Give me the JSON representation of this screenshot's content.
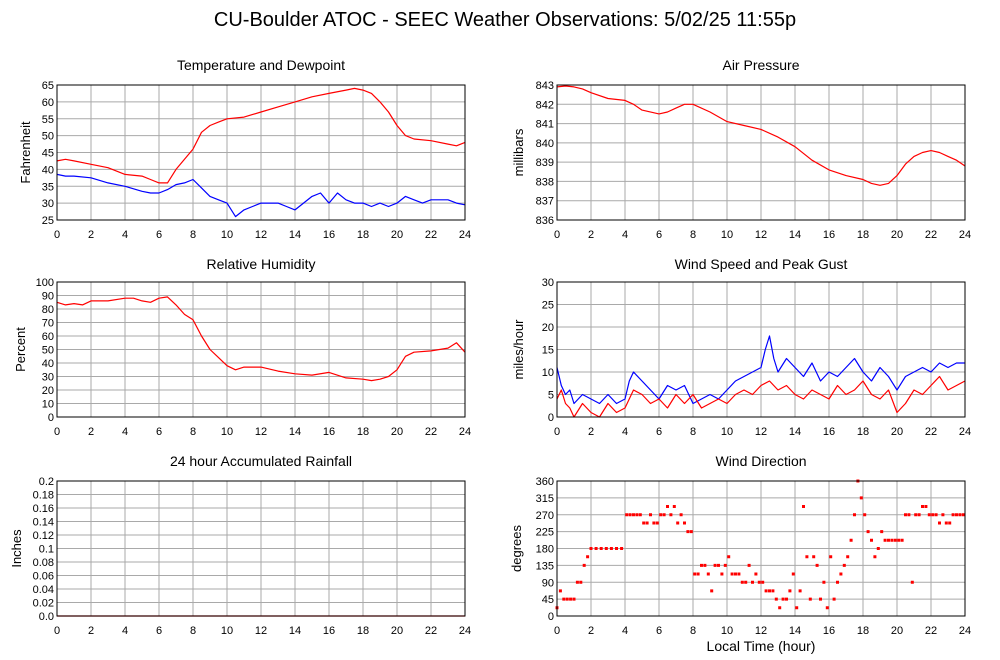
{
  "title": "CU-Boulder ATOC - SEEC Weather Observations: 5/02/25 11:55p",
  "x_axis_label": "Local Time (hour)",
  "x_ticks": [
    0,
    2,
    4,
    6,
    8,
    10,
    12,
    14,
    16,
    18,
    20,
    22,
    24
  ],
  "colors": {
    "red": "#ff0000",
    "blue": "#0000ff",
    "grid": "#a9a9a9",
    "frame": "#000000"
  },
  "chart_data": [
    {
      "id": "temp",
      "type": "line",
      "title": "Temperature and Dewpoint",
      "ylabel": "Fahrenheit",
      "xlim": [
        0,
        24
      ],
      "ylim": [
        25,
        65
      ],
      "yticks": [
        25,
        30,
        35,
        40,
        45,
        50,
        55,
        60,
        65
      ],
      "series": [
        {
          "color": "#ff0000",
          "x": [
            0,
            0.5,
            1,
            2,
            3,
            4,
            5,
            5.5,
            6,
            6.5,
            7,
            7.5,
            8,
            8.5,
            9,
            9.5,
            10,
            11,
            12,
            13,
            14,
            15,
            16,
            17,
            17.5,
            18,
            18.5,
            19,
            19.5,
            20,
            20.5,
            21,
            22,
            23,
            23.5,
            24
          ],
          "y": [
            42.5,
            43,
            42.5,
            41.5,
            40.5,
            38.5,
            38,
            37,
            36,
            36,
            40,
            43,
            46,
            51,
            53,
            54,
            55,
            55.5,
            57,
            58.5,
            60,
            61.5,
            62.5,
            63.5,
            64,
            63.5,
            62.5,
            60,
            57,
            53,
            50,
            49,
            48.5,
            47.5,
            47,
            48
          ]
        },
        {
          "color": "#0000ff",
          "x": [
            0,
            0.5,
            1,
            2,
            3,
            4,
            5,
            5.5,
            6,
            6.5,
            7,
            7.5,
            8,
            8.5,
            9,
            9.5,
            10,
            10.5,
            11,
            11.5,
            12,
            13,
            13.5,
            14,
            14.5,
            15,
            15.5,
            16,
            16.5,
            17,
            17.5,
            18,
            18.5,
            19,
            19.5,
            20,
            20.5,
            21,
            21.5,
            22,
            22.5,
            23,
            23.5,
            24
          ],
          "y": [
            38.5,
            38,
            38,
            37.5,
            36,
            35,
            33.5,
            33,
            33,
            34,
            35.5,
            36,
            37,
            34.5,
            32,
            31,
            30,
            26,
            28,
            29,
            30,
            30,
            29,
            28,
            30,
            32,
            33,
            30,
            33,
            31,
            30,
            30,
            29,
            30,
            29,
            30,
            32,
            31,
            30,
            31,
            31,
            31,
            30,
            29.5
          ]
        }
      ]
    },
    {
      "id": "pressure",
      "type": "line",
      "title": "Air Pressure",
      "ylabel": "millibars",
      "xlim": [
        0,
        24
      ],
      "ylim": [
        836,
        843
      ],
      "yticks": [
        836,
        837,
        838,
        839,
        840,
        841,
        842,
        843
      ],
      "series": [
        {
          "color": "#ff0000",
          "x": [
            0,
            0.5,
            1,
            1.5,
            2,
            3,
            4,
            4.5,
            5,
            6,
            6.5,
            7,
            7.5,
            8,
            9,
            10,
            11,
            12,
            13,
            14,
            15,
            16,
            17,
            18,
            18.5,
            19,
            19.5,
            20,
            20.5,
            21,
            21.5,
            22,
            22.5,
            23,
            23.5,
            24
          ],
          "y": [
            842.9,
            842.95,
            842.9,
            842.8,
            842.6,
            842.3,
            842.2,
            842,
            841.7,
            841.5,
            841.6,
            841.8,
            842,
            842,
            841.6,
            841.1,
            840.9,
            840.7,
            840.3,
            839.8,
            839.1,
            838.6,
            838.3,
            838.1,
            837.9,
            837.8,
            837.9,
            838.3,
            838.9,
            839.3,
            839.5,
            839.6,
            839.5,
            839.3,
            839.1,
            838.8
          ]
        }
      ]
    },
    {
      "id": "rh",
      "type": "line",
      "title": "Relative Humidity",
      "ylabel": "Percent",
      "xlim": [
        0,
        24
      ],
      "ylim": [
        0,
        100
      ],
      "yticks": [
        0,
        10,
        20,
        30,
        40,
        50,
        60,
        70,
        80,
        90,
        100
      ],
      "series": [
        {
          "color": "#ff0000",
          "x": [
            0,
            0.5,
            1,
            1.5,
            2,
            3,
            4,
            4.5,
            5,
            5.5,
            6,
            6.5,
            7,
            7.5,
            8,
            8.5,
            9,
            9.5,
            10,
            10.5,
            11,
            12,
            13,
            14,
            15,
            16,
            17,
            18,
            18.5,
            19,
            19.5,
            20,
            20.5,
            21,
            22,
            22.5,
            23,
            23.5,
            24
          ],
          "y": [
            85,
            83,
            84,
            83,
            86,
            86,
            88,
            88,
            86,
            85,
            88,
            89,
            83,
            76,
            72,
            60,
            50,
            44,
            38,
            35,
            37,
            37,
            34,
            32,
            31,
            33,
            29,
            28,
            27,
            28,
            30,
            35,
            45,
            48,
            49,
            50,
            51,
            55,
            48
          ]
        }
      ]
    },
    {
      "id": "wind",
      "type": "line",
      "title": "Wind Speed and Peak Gust",
      "ylabel": "miles/hour",
      "xlim": [
        0,
        24
      ],
      "ylim": [
        0,
        30
      ],
      "yticks": [
        0,
        5,
        10,
        15,
        20,
        25,
        30
      ],
      "series": [
        {
          "color": "#0000ff",
          "x": [
            0,
            0.25,
            0.5,
            0.75,
            1,
            1.5,
            2,
            2.5,
            3,
            3.5,
            4,
            4.25,
            4.5,
            5,
            5.5,
            6,
            6.5,
            7,
            7.5,
            8,
            8.5,
            9,
            9.5,
            10,
            10.5,
            11,
            11.5,
            12,
            12.25,
            12.5,
            12.75,
            13,
            13.5,
            14,
            14.5,
            15,
            15.5,
            16,
            16.5,
            17,
            17.5,
            18,
            18.5,
            19,
            19.5,
            20,
            20.5,
            21,
            21.5,
            22,
            22.5,
            23,
            23.5,
            24
          ],
          "y": [
            11,
            7,
            5,
            6,
            3,
            5,
            4,
            3,
            5,
            3,
            4,
            8,
            10,
            8,
            6,
            4,
            7,
            6,
            7,
            3,
            4,
            5,
            4,
            6,
            8,
            9,
            10,
            11,
            15,
            18,
            13,
            10,
            13,
            11,
            9,
            12,
            8,
            10,
            9,
            11,
            13,
            10,
            8,
            11,
            9,
            6,
            9,
            10,
            11,
            10,
            12,
            11,
            12,
            12
          ]
        },
        {
          "color": "#ff0000",
          "x": [
            0,
            0.25,
            0.5,
            0.75,
            1,
            1.5,
            2,
            2.5,
            3,
            3.5,
            4,
            4.5,
            5,
            5.5,
            6,
            6.5,
            7,
            7.5,
            8,
            8.5,
            9,
            9.5,
            10,
            10.5,
            11,
            11.5,
            12,
            12.5,
            13,
            13.5,
            14,
            14.5,
            15,
            15.5,
            16,
            16.5,
            17,
            17.5,
            18,
            18.5,
            19,
            19.5,
            20,
            20.5,
            21,
            21.5,
            22,
            22.5,
            23,
            23.5,
            24
          ],
          "y": [
            4,
            6,
            3,
            2,
            0,
            3,
            1,
            0,
            3,
            1,
            2,
            6,
            5,
            3,
            4,
            2,
            5,
            3,
            5,
            2,
            3,
            4,
            3,
            5,
            6,
            5,
            7,
            8,
            6,
            7,
            5,
            4,
            6,
            5,
            4,
            7,
            5,
            6,
            8,
            5,
            4,
            6,
            1,
            3,
            6,
            5,
            7,
            9,
            6,
            7,
            8
          ]
        }
      ]
    },
    {
      "id": "rain",
      "type": "line",
      "title": "24 hour Accumulated Rainfall",
      "ylabel": "Inches",
      "xlim": [
        0,
        24
      ],
      "ylim": [
        0,
        0.2
      ],
      "yticks": [
        0.0,
        0.02,
        0.04,
        0.06,
        0.08,
        0.1,
        0.12,
        0.14,
        0.16,
        0.18,
        0.2
      ],
      "ytick_labels": [
        "0.0",
        "0.02",
        "0.04",
        "0.06",
        "0.08",
        "0.1",
        "0.12",
        "0.14",
        "0.16",
        "0.18",
        "0.2"
      ],
      "series": [
        {
          "color": "#ff0000",
          "x": [
            0,
            24
          ],
          "y": [
            0,
            0
          ]
        }
      ]
    },
    {
      "id": "winddir",
      "type": "scatter",
      "title": "Wind Direction",
      "ylabel": "degrees",
      "xlim": [
        0,
        24
      ],
      "ylim": [
        0,
        360
      ],
      "yticks": [
        0,
        45,
        90,
        135,
        180,
        225,
        270,
        315,
        360
      ],
      "series": [
        {
          "color": "#ff0000",
          "x": [
            0,
            0.2,
            0.4,
            0.6,
            0.8,
            1.0,
            1.2,
            1.4,
            1.6,
            1.8,
            2.0,
            2.3,
            2.6,
            2.9,
            3.2,
            3.5,
            3.8,
            4.1,
            4.3,
            4.5,
            4.7,
            4.9,
            5.1,
            5.3,
            5.5,
            5.7,
            5.9,
            6.1,
            6.3,
            6.5,
            6.7,
            6.9,
            7.1,
            7.3,
            7.5,
            7.7,
            7.9,
            8.1,
            8.3,
            8.5,
            8.7,
            8.9,
            9.1,
            9.3,
            9.5,
            9.7,
            9.9,
            10.1,
            10.3,
            10.5,
            10.7,
            10.9,
            11.1,
            11.3,
            11.5,
            11.7,
            11.9,
            12.1,
            12.3,
            12.5,
            12.7,
            12.9,
            13.1,
            13.3,
            13.5,
            13.7,
            13.9,
            14.1,
            14.3,
            14.5,
            14.7,
            14.9,
            15.1,
            15.3,
            15.5,
            15.7,
            15.9,
            16.1,
            16.3,
            16.5,
            16.7,
            16.9,
            17.1,
            17.3,
            17.5,
            17.7,
            17.9,
            18.1,
            18.3,
            18.5,
            18.7,
            18.9,
            19.1,
            19.3,
            19.5,
            19.7,
            19.9,
            20.1,
            20.3,
            20.5,
            20.7,
            20.9,
            21.1,
            21.3,
            21.5,
            21.7,
            21.9,
            22.1,
            22.3,
            22.5,
            22.7,
            22.9,
            23.1,
            23.3,
            23.5,
            23.7,
            23.9
          ],
          "y": [
            22,
            67,
            45,
            45,
            45,
            45,
            90,
            90,
            135,
            158,
            180,
            180,
            180,
            180,
            180,
            180,
            180,
            270,
            270,
            270,
            270,
            270,
            248,
            248,
            270,
            248,
            248,
            270,
            270,
            292,
            270,
            292,
            248,
            270,
            248,
            225,
            225,
            112,
            112,
            135,
            135,
            112,
            67,
            135,
            135,
            112,
            135,
            158,
            112,
            112,
            112,
            90,
            90,
            135,
            90,
            112,
            90,
            90,
            67,
            67,
            67,
            45,
            22,
            45,
            45,
            67,
            112,
            22,
            67,
            292,
            158,
            45,
            158,
            135,
            45,
            90,
            22,
            158,
            45,
            90,
            112,
            135,
            158,
            202,
            270,
            360,
            315,
            270,
            225,
            202,
            158,
            180,
            225,
            202,
            202,
            202,
            202,
            202,
            202,
            270,
            270,
            90,
            270,
            270,
            292,
            292,
            270,
            270,
            270,
            248,
            270,
            248,
            248,
            270,
            270,
            270,
            270
          ]
        }
      ]
    }
  ]
}
